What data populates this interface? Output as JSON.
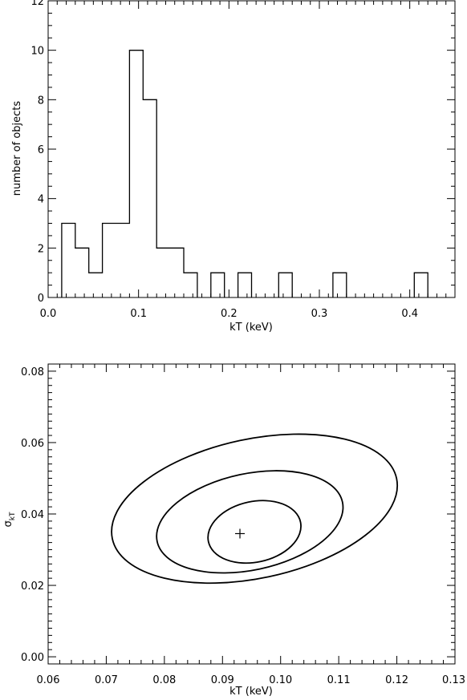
{
  "chart_data": [
    {
      "type": "histogram",
      "xlabel": "kT (keV)",
      "ylabel": "number of objects",
      "xlim": [
        0.0,
        0.45
      ],
      "ylim": [
        0,
        12
      ],
      "xticks": [
        0.0,
        0.1,
        0.2,
        0.3,
        0.4
      ],
      "xtick_labels": [
        "0.0",
        "0.1",
        "0.2",
        "0.3",
        "0.4"
      ],
      "yticks": [
        0,
        2,
        4,
        6,
        8,
        10,
        12
      ],
      "ytick_labels": [
        "0",
        "2",
        "4",
        "6",
        "8",
        "10",
        "12"
      ],
      "bin_width": 0.015,
      "bins": [
        {
          "x0": 0.015,
          "count": 3
        },
        {
          "x0": 0.03,
          "count": 2
        },
        {
          "x0": 0.045,
          "count": 1
        },
        {
          "x0": 0.06,
          "count": 3
        },
        {
          "x0": 0.075,
          "count": 3
        },
        {
          "x0": 0.09,
          "count": 10
        },
        {
          "x0": 0.105,
          "count": 8
        },
        {
          "x0": 0.12,
          "count": 2
        },
        {
          "x0": 0.135,
          "count": 2
        },
        {
          "x0": 0.15,
          "count": 1
        },
        {
          "x0": 0.18,
          "count": 1
        },
        {
          "x0": 0.21,
          "count": 1
        },
        {
          "x0": 0.255,
          "count": 1
        },
        {
          "x0": 0.315,
          "count": 1
        },
        {
          "x0": 0.405,
          "count": 1
        }
      ]
    },
    {
      "type": "contour",
      "xlabel": "kT (keV)",
      "ylabel": "σ",
      "ylabel_sub": "kT",
      "xlim": [
        0.06,
        0.13
      ],
      "ylim": [
        -0.002,
        0.082
      ],
      "xticks": [
        0.06,
        0.07,
        0.08,
        0.09,
        0.1,
        0.11,
        0.12,
        0.13
      ],
      "xtick_labels": [
        "0.06",
        "0.07",
        "0.08",
        "0.09",
        "0.10",
        "0.11",
        "0.12",
        "0.13"
      ],
      "yticks": [
        0.0,
        0.02,
        0.04,
        0.06,
        0.08
      ],
      "ytick_labels": [
        "0.00",
        "0.02",
        "0.04",
        "0.06",
        "0.08"
      ],
      "best_fit": {
        "x": 0.093,
        "y": 0.0345
      },
      "contours": [
        {
          "cx": 0.0955,
          "cy": 0.035,
          "rx": 0.0081,
          "ry": 0.0085,
          "tilt_deg": 12
        },
        {
          "cx": 0.0947,
          "cy": 0.0378,
          "rx": 0.0163,
          "ry": 0.0135,
          "tilt_deg": 12
        },
        {
          "cx": 0.0955,
          "cy": 0.0415,
          "rx": 0.025,
          "ry": 0.0195,
          "tilt_deg": 12
        }
      ]
    }
  ]
}
